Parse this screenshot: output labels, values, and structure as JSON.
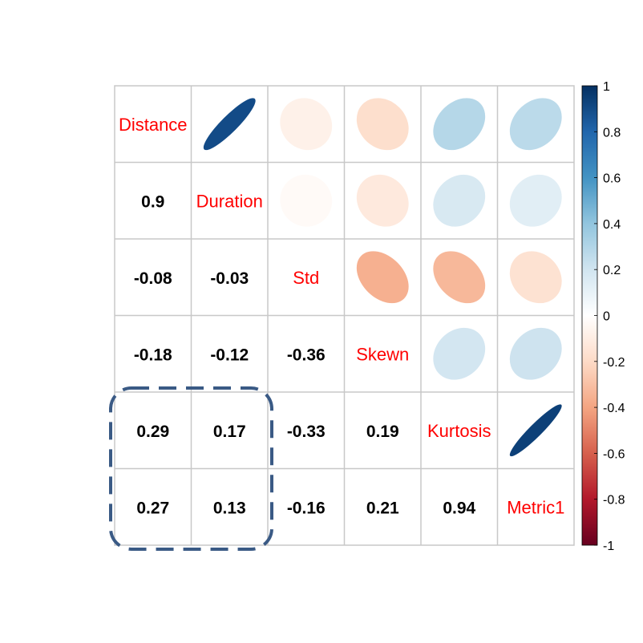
{
  "chart_data": {
    "type": "heatmap",
    "variables": [
      "Distance",
      "Duration",
      "Std",
      "Skewn",
      "Kurtosis",
      "Metric1"
    ],
    "matrix": [
      [
        1,
        0.9,
        -0.08,
        -0.18,
        0.29,
        0.27
      ],
      [
        0.9,
        1,
        -0.03,
        -0.12,
        0.17,
        0.13
      ],
      [
        -0.08,
        -0.03,
        1,
        -0.36,
        -0.33,
        -0.16
      ],
      [
        -0.18,
        -0.12,
        -0.36,
        1,
        0.19,
        0.21
      ],
      [
        0.29,
        0.17,
        -0.33,
        0.19,
        1,
        0.94
      ],
      [
        0.27,
        0.13,
        -0.16,
        0.21,
        0.94,
        1
      ]
    ],
    "lower_labels": [
      {
        "row": 1,
        "col": 0,
        "text": "0.9"
      },
      {
        "row": 2,
        "col": 0,
        "text": "-0.08"
      },
      {
        "row": 2,
        "col": 1,
        "text": "-0.03"
      },
      {
        "row": 3,
        "col": 0,
        "text": "-0.18"
      },
      {
        "row": 3,
        "col": 1,
        "text": "-0.12"
      },
      {
        "row": 3,
        "col": 2,
        "text": "-0.36"
      },
      {
        "row": 4,
        "col": 0,
        "text": "0.29"
      },
      {
        "row": 4,
        "col": 1,
        "text": "0.17"
      },
      {
        "row": 4,
        "col": 2,
        "text": "-0.33"
      },
      {
        "row": 4,
        "col": 3,
        "text": "0.19"
      },
      {
        "row": 5,
        "col": 0,
        "text": "0.27"
      },
      {
        "row": 5,
        "col": 1,
        "text": "0.13"
      },
      {
        "row": 5,
        "col": 2,
        "text": "-0.16"
      },
      {
        "row": 5,
        "col": 3,
        "text": "0.21"
      },
      {
        "row": 5,
        "col": 4,
        "text": "0.94"
      }
    ],
    "upper_method": "ellipse",
    "lower_method": "number",
    "colorbar": {
      "range": [
        -1,
        1
      ],
      "ticks": [
        "1",
        "0.8",
        "0.6",
        "0.4",
        "0.2",
        "0",
        "-0.2",
        "-0.4",
        "-0.6",
        "-0.8",
        "-1"
      ],
      "palette": [
        "#67001F",
        "#B2182B",
        "#D6604D",
        "#F4A582",
        "#FDDBC7",
        "#FFFFFF",
        "#D1E5F0",
        "#92C5DE",
        "#4393C3",
        "#2166AC",
        "#053061"
      ]
    },
    "highlight": {
      "rows": [
        4,
        5
      ],
      "cols": [
        0,
        1
      ],
      "style": "dashed",
      "color": "#3A5A85"
    },
    "grid": true
  }
}
